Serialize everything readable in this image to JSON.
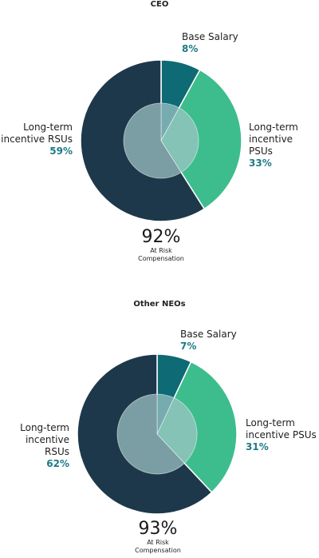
{
  "chart_data": [
    {
      "type": "pie",
      "title": "CEO",
      "slices": [
        {
          "name": "Base Salary",
          "value": 8,
          "label": "8%",
          "color": "#0e6a74"
        },
        {
          "name": "Long-term incentive PSUs",
          "value": 33,
          "label": "33%",
          "color": "#3dbd8d"
        },
        {
          "name": "Long-term incentive RSUs",
          "value": 59,
          "label": "59%",
          "color": "#1e384b"
        }
      ],
      "inner_color": "#9fc6c6",
      "at_risk": {
        "value": "92%",
        "caption_line1": "At Risk",
        "caption_line2": "Compensation"
      },
      "labels": {
        "base_name": "Base Salary",
        "psu_line1": "Long-term",
        "psu_line2": "incentive PSUs",
        "rsu_line1": "Long-term",
        "rsu_line2": "incentive RSUs"
      }
    },
    {
      "type": "pie",
      "title": "Other NEOs",
      "slices": [
        {
          "name": "Base Salary",
          "value": 7,
          "label": "7%",
          "color": "#0e6a74"
        },
        {
          "name": "Long-term incentive PSUs",
          "value": 31,
          "label": "31%",
          "color": "#3dbd8d"
        },
        {
          "name": "Long-term incentive RSUs",
          "value": 62,
          "label": "62%",
          "color": "#1e384b"
        }
      ],
      "inner_color": "#9fc6c6",
      "at_risk": {
        "value": "93%",
        "caption_line1": "At Risk",
        "caption_line2": "Compensation"
      },
      "labels": {
        "base_name": "Base Salary",
        "psu_line1": "Long-term",
        "psu_line2": "incentive PSUs",
        "rsu_line1": "Long-term",
        "rsu_line2": "incentive RSUs"
      }
    }
  ]
}
